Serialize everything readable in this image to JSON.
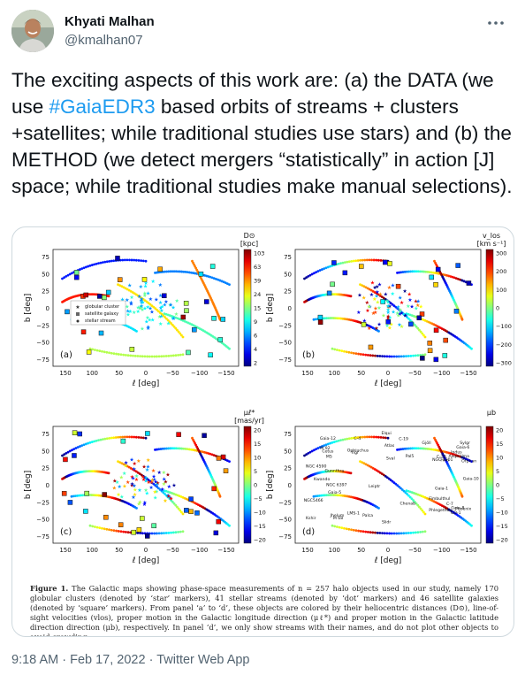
{
  "author": {
    "name": "Khyati Malhan",
    "handle": "@kmalhan07"
  },
  "tweet": {
    "text_before": "The exciting aspects of this work are: (a) the DATA (we use ",
    "hashtag": "#GaiaEDR3",
    "text_after": " based orbits of streams + clusters +satellites; while traditional studies use stars) and (b) the METHOD (we detect mergers “statistically” in action [J] space; while traditional studies make manual selections)."
  },
  "figure": {
    "panels": [
      {
        "id": "a",
        "label": "(a)",
        "cbar_title_line1": "D⊙",
        "cbar_title_line2": "[kpc]",
        "cbar_ticks": [
          "103",
          "63",
          "39",
          "24",
          "15",
          "9",
          "6",
          "4",
          "2"
        ],
        "xlabel": "ℓ [deg]",
        "ylabel": "b [deg]",
        "xticks": [
          "150",
          "100",
          "50",
          "0",
          "−50",
          "−100",
          "−150"
        ],
        "yticks": [
          "75",
          "50",
          "25",
          "0",
          "−25",
          "−50",
          "−75"
        ],
        "legend": [
          "globular cluster",
          "satellite galaxy",
          "stellar stream"
        ]
      },
      {
        "id": "b",
        "label": "(b)",
        "cbar_title_line1": "v_los",
        "cbar_title_line2": "[km s⁻¹]",
        "cbar_ticks": [
          "300",
          "200",
          "100",
          "0",
          "−100",
          "−200",
          "−300"
        ],
        "xlabel": "ℓ [deg]",
        "ylabel": "b [deg]",
        "xticks": [
          "150",
          "100",
          "50",
          "0",
          "−50",
          "−100",
          "−150"
        ],
        "yticks": [
          "75",
          "50",
          "25",
          "0",
          "−25",
          "−50",
          "−75"
        ]
      },
      {
        "id": "c",
        "label": "(c)",
        "cbar_title_line1": "μℓ*",
        "cbar_title_line2": "[mas/yr]",
        "cbar_ticks": [
          "20",
          "15",
          "10",
          "5",
          "0",
          "−5",
          "−10",
          "−15",
          "−20"
        ],
        "xlabel": "ℓ [deg]",
        "ylabel": "b [deg]",
        "xticks": [
          "150",
          "100",
          "50",
          "0",
          "−50",
          "−100",
          "−150"
        ],
        "yticks": [
          "75",
          "50",
          "25",
          "0",
          "−25",
          "−50",
          "−75"
        ]
      },
      {
        "id": "d",
        "label": "(d)",
        "cbar_title_line1": "μb",
        "cbar_title_line2": "",
        "cbar_ticks": [
          "20",
          "15",
          "10",
          "5",
          "0",
          "−5",
          "−10",
          "−15",
          "−20"
        ],
        "xlabel": "ℓ [deg]",
        "ylabel": "b [deg]",
        "xticks": [
          "150",
          "100",
          "50",
          "0",
          "−50",
          "−100",
          "−150"
        ],
        "yticks": [
          "75",
          "50",
          "25",
          "0",
          "−25",
          "−50",
          "−75"
        ],
        "stream_names": [
          "GD-1",
          "Kwando",
          "Gaia-5",
          "Gaia-12",
          "C-20",
          "Gaia-6",
          "Ylgr",
          "NGC5466",
          "LMS-1",
          "Gaia-1",
          "Sylgr",
          "Slidr",
          "Gaia-10",
          "Kshir",
          "Gaia-8",
          "M5",
          "Sval",
          "C-7",
          "Pal5",
          "Fimbulthul",
          "Gjöll",
          "Phlegethon",
          "Gunnthra",
          "NGC 3201",
          "Indus",
          "Phoenix",
          "Leiptr",
          "Palca",
          "Atlas",
          "Aliqa Uma",
          "Elqui",
          "Jhelum",
          "Chenab",
          "C-19",
          "Ophiuchus",
          "Hrid",
          "NGC 4590",
          "NGC 6397",
          "Orphan",
          "M 92",
          "Cetus",
          "C-4",
          "M 68"
        ]
      }
    ],
    "caption_bold": "Figure 1.",
    "caption": " The Galactic maps showing phase-space measurements of n = 257 halo objects used in our study, namely 170 globular clusters (denoted by ‘star’ markers), 41 stellar streams (denoted by ‘dot’ markers) and 46 satellite galaxies (denoted by ‘square’ markers). From panel ‘a’ to ‘d’, these objects are colored by their heliocentric distances (D⊙), line-of-sight velocities (vlos), proper motion in the Galactic longitude direction (μℓ*) and proper motion in the Galactic latitude direction direction (μb), respectively. In panel ‘d’, we only show streams with their names, and do not plot other objects to avoid crowding."
  },
  "footer": {
    "time": "9:18 AM",
    "separator1": " · ",
    "date": "Feb 17, 2022",
    "separator2": " · ",
    "source": "Twitter Web App"
  }
}
